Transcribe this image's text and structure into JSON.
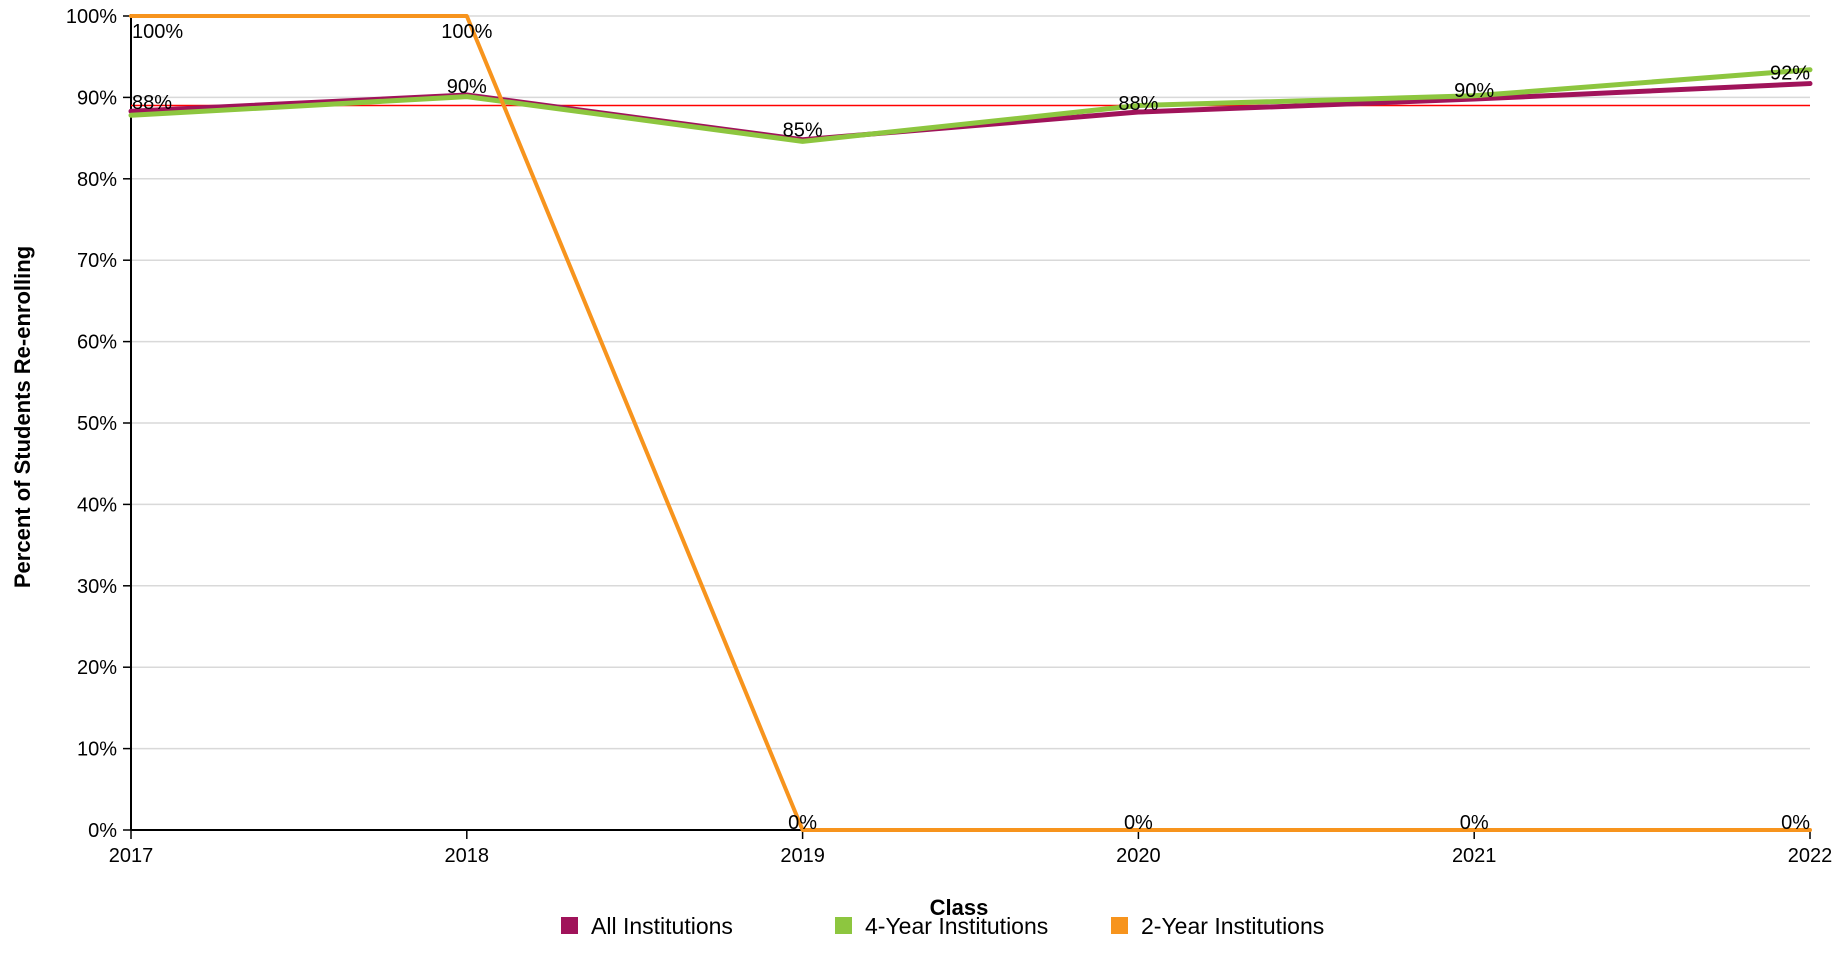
{
  "chart_data": {
    "type": "line",
    "categories": [
      "2017",
      "2018",
      "2019",
      "2020",
      "2021",
      "2022"
    ],
    "x": [
      2017,
      2018,
      2019,
      2020,
      2021,
      2022
    ],
    "ylim": [
      0,
      100
    ],
    "yticks": [
      0,
      10,
      20,
      30,
      40,
      50,
      60,
      70,
      80,
      90,
      100
    ],
    "ytick_labels": [
      "0%",
      "10%",
      "20%",
      "30%",
      "40%",
      "50%",
      "60%",
      "70%",
      "80%",
      "90%",
      "100%"
    ],
    "xlabel": "Class",
    "ylabel": "Percent of Students Re-enrolling",
    "grid": true,
    "reference_line": {
      "value": 89,
      "color": "#ff0000"
    },
    "legend_position": "bottom",
    "series": [
      {
        "name": "All Institutions",
        "color": "#a0135a",
        "values": [
          88.3,
          90.3,
          84.8,
          88.2,
          89.8,
          91.7
        ],
        "labels": [
          "88%",
          "90%",
          "85%",
          "88%",
          "90%",
          "92%"
        ]
      },
      {
        "name": "4-Year Institutions",
        "color": "#8dc63f",
        "values": [
          87.8,
          90.1,
          84.6,
          89.0,
          90.2,
          93.4
        ],
        "labels": [
          "",
          "",
          "",
          "",
          "",
          ""
        ]
      },
      {
        "name": "2-Year Institutions",
        "color": "#f7941d",
        "values": [
          100,
          100,
          0,
          0,
          0,
          0
        ],
        "labels": [
          "100%",
          "100%",
          "0%",
          "0%",
          "0%",
          "0%"
        ]
      }
    ]
  }
}
